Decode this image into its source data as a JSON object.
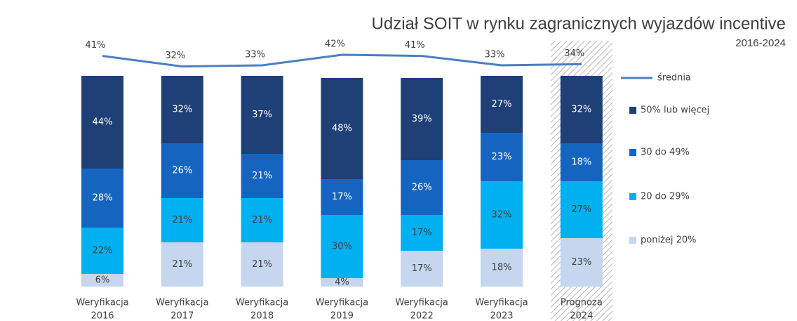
{
  "chart_data": {
    "type": "stacked_bar",
    "title": "Udział SOIT w rynku zagranicznych wyjazdów incentive",
    "subtitle": "2016-2024",
    "categories": [
      [
        "Weryfikacja",
        "2016"
      ],
      [
        "Weryfikacja",
        "2017"
      ],
      [
        "Weryfikacja",
        "2018"
      ],
      [
        "Weryfikacja",
        "2019"
      ],
      [
        "Weryfikacja",
        "2022"
      ],
      [
        "Weryfikacja",
        "2023"
      ],
      [
        "Prognoza",
        "2024"
      ]
    ],
    "ylim": [
      0,
      100
    ],
    "series": [
      {
        "name": "poniżej 20%",
        "color": "#c5d6ee",
        "text_color": "#404040",
        "values": [
          6,
          21,
          21,
          4,
          17,
          18,
          23
        ],
        "value_labels": [
          "6%",
          "21%",
          "21%",
          "4%",
          "17%",
          "18%",
          "23%"
        ]
      },
      {
        "name": "20 do 29%",
        "color": "#00b0f0",
        "text_color": "#404040",
        "values": [
          22,
          21,
          21,
          30,
          17,
          32,
          27
        ],
        "value_labels": [
          "22%",
          "21%",
          "21%",
          "30%",
          "17%",
          "32%",
          "27%"
        ]
      },
      {
        "name": "30 do 49%",
        "color": "#1565c0",
        "text_color": "#ffffff",
        "values": [
          28,
          26,
          21,
          17,
          26,
          23,
          18
        ],
        "value_labels": [
          "28%",
          "26%",
          "21%",
          "17%",
          "26%",
          "23%",
          "18%"
        ]
      },
      {
        "name": "50% lub więcej",
        "color": "#1f3f77",
        "text_color": "#ffffff",
        "values": [
          44,
          32,
          37,
          48,
          39,
          27,
          32
        ],
        "value_labels": [
          "44%",
          "32%",
          "37%",
          "48%",
          "39%",
          "27%",
          "32%"
        ]
      }
    ],
    "line": {
      "name": "średnia",
      "color": "#4a7fc1",
      "values": [
        41,
        32,
        33,
        42,
        41,
        33,
        34
      ],
      "value_labels": [
        "41%",
        "32%",
        "33%",
        "42%",
        "41%",
        "33%",
        "34%"
      ]
    }
  }
}
